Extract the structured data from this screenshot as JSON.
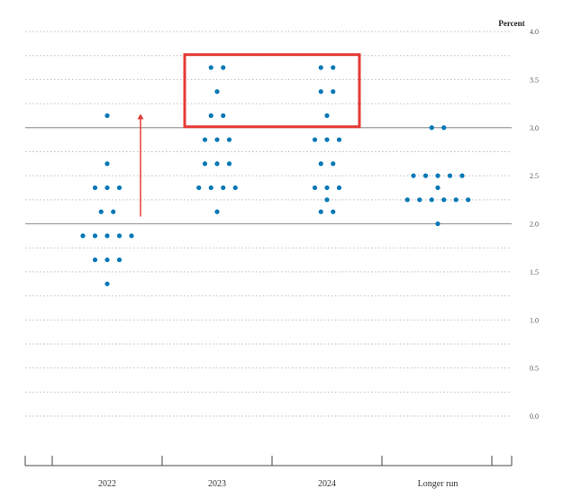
{
  "chart_data": {
    "type": "scatter",
    "ylabel": "Percent",
    "ylim": [
      0,
      4.0
    ],
    "yticks": [
      "0.0",
      "0.5",
      "1.0",
      "1.5",
      "2.0",
      "2.5",
      "3.0",
      "3.5",
      "4.0"
    ],
    "categories": [
      "2022",
      "2023",
      "2024",
      "Longer run"
    ],
    "grid": true,
    "colors": {
      "dots": "#0077b5",
      "highlight_box": "#e53935",
      "arrow": "#e53935"
    },
    "series": [
      {
        "category": "2022",
        "points": [
          {
            "y": 3.125,
            "count": 1
          },
          {
            "y": 2.625,
            "count": 1
          },
          {
            "y": 2.375,
            "count": 3
          },
          {
            "y": 2.125,
            "count": 2
          },
          {
            "y": 1.875,
            "count": 5
          },
          {
            "y": 1.625,
            "count": 3
          },
          {
            "y": 1.375,
            "count": 1
          }
        ]
      },
      {
        "category": "2023",
        "points": [
          {
            "y": 3.625,
            "count": 2
          },
          {
            "y": 3.375,
            "count": 1
          },
          {
            "y": 3.125,
            "count": 2
          },
          {
            "y": 2.875,
            "count": 3
          },
          {
            "y": 2.625,
            "count": 3
          },
          {
            "y": 2.375,
            "count": 4
          },
          {
            "y": 2.125,
            "count": 1
          }
        ]
      },
      {
        "category": "2024",
        "points": [
          {
            "y": 3.625,
            "count": 2
          },
          {
            "y": 3.375,
            "count": 2
          },
          {
            "y": 3.125,
            "count": 1
          },
          {
            "y": 2.875,
            "count": 3
          },
          {
            "y": 2.625,
            "count": 2
          },
          {
            "y": 2.375,
            "count": 3
          },
          {
            "y": 2.25,
            "count": 1
          },
          {
            "y": 2.125,
            "count": 2
          }
        ]
      },
      {
        "category": "Longer run",
        "points": [
          {
            "y": 3.0,
            "count": 2
          },
          {
            "y": 2.5,
            "count": 5
          },
          {
            "y": 2.375,
            "count": 1
          },
          {
            "y": 2.25,
            "count": 6
          },
          {
            "y": 2.0,
            "count": 1
          }
        ]
      }
    ],
    "annotations": [
      {
        "type": "box",
        "categories": [
          "2023",
          "2024"
        ],
        "y_range": [
          3.0,
          3.75
        ]
      },
      {
        "type": "arrow",
        "category": "2022",
        "y_from": 2.0,
        "y_to": 3.125
      }
    ]
  }
}
